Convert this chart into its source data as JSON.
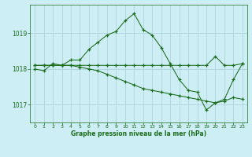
{
  "hours": [
    0,
    1,
    2,
    3,
    4,
    5,
    6,
    7,
    8,
    9,
    10,
    11,
    12,
    13,
    14,
    15,
    16,
    17,
    18,
    19,
    20,
    21,
    22,
    23
  ],
  "line1": [
    1018.0,
    1017.95,
    1018.15,
    1018.1,
    1018.25,
    1018.25,
    1018.55,
    1018.75,
    1018.95,
    1019.05,
    1019.35,
    1019.55,
    1019.1,
    1018.95,
    1018.6,
    1018.15,
    1017.7,
    1017.4,
    1017.35,
    1016.85,
    1017.05,
    1017.15,
    1017.7,
    1018.15
  ],
  "line2": [
    1018.1,
    1018.1,
    1018.1,
    1018.1,
    1018.1,
    1018.1,
    1018.1,
    1018.1,
    1018.1,
    1018.1,
    1018.1,
    1018.1,
    1018.1,
    1018.1,
    1018.1,
    1018.1,
    1018.1,
    1018.1,
    1018.1,
    1018.1,
    1018.35,
    1018.1,
    1018.1,
    1018.15
  ],
  "line3": [
    1018.1,
    1018.1,
    1018.1,
    1018.1,
    1018.1,
    1018.05,
    1018.0,
    1017.95,
    1017.85,
    1017.75,
    1017.65,
    1017.55,
    1017.45,
    1017.4,
    1017.35,
    1017.3,
    1017.25,
    1017.2,
    1017.15,
    1017.1,
    1017.05,
    1017.1,
    1017.2,
    1017.15
  ],
  "line_color": "#1a6b1a",
  "bg_color": "#cdeef5",
  "grid_color": "#aacfda",
  "xlabel": "Graphe pression niveau de la mer (hPa)",
  "xlabel_color": "#1a6b1a",
  "xlim": [
    -0.5,
    23.5
  ],
  "ylim": [
    1016.5,
    1019.8
  ],
  "yticks": [
    1017,
    1018,
    1019
  ],
  "xticks": [
    0,
    1,
    2,
    3,
    4,
    5,
    6,
    7,
    8,
    9,
    10,
    11,
    12,
    13,
    14,
    15,
    16,
    17,
    18,
    19,
    20,
    21,
    22,
    23
  ]
}
